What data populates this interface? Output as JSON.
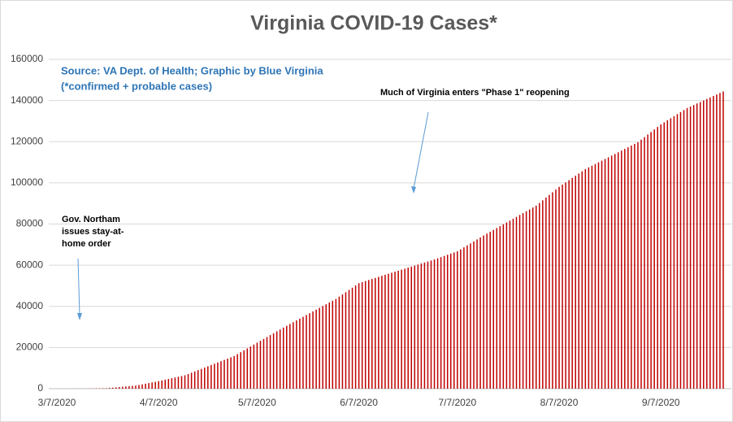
{
  "chart_data": {
    "type": "bar",
    "title": "Virginia COVID-19 Cases*",
    "source_note": [
      "Source: VA Dept. of Health; Graphic by Blue Virginia",
      "(*confirmed + probable cases)"
    ],
    "annotations": [
      [
        "Much of Virginia enters \"Phase 1\" reopening"
      ],
      [
        "Gov. Northam",
        "issues stay-at-",
        "home order"
      ]
    ],
    "color": "#c00000",
    "grid": true,
    "ylim": [
      0,
      160000
    ],
    "yticks": [
      0,
      20000,
      40000,
      60000,
      80000,
      100000,
      120000,
      140000,
      160000
    ],
    "xticks": [
      "3/7/2020",
      "4/7/2020",
      "5/7/2020",
      "6/7/2020",
      "7/7/2020",
      "8/7/2020",
      "9/7/2020"
    ],
    "x": [
      "3/7/2020",
      "3/8/2020",
      "3/9/2020",
      "3/10/2020",
      "3/11/2020",
      "3/12/2020",
      "3/13/2020",
      "3/14/2020",
      "3/15/2020",
      "3/16/2020",
      "3/17/2020",
      "3/18/2020",
      "3/19/2020",
      "3/20/2020",
      "3/21/2020",
      "3/22/2020",
      "3/23/2020",
      "3/24/2020",
      "3/25/2020",
      "3/26/2020",
      "3/27/2020",
      "3/28/2020",
      "3/29/2020",
      "3/30/2020",
      "3/31/2020",
      "4/1/2020",
      "4/2/2020",
      "4/3/2020",
      "4/4/2020",
      "4/5/2020",
      "4/6/2020",
      "4/7/2020",
      "4/8/2020",
      "4/9/2020",
      "4/10/2020",
      "4/11/2020",
      "4/12/2020",
      "4/13/2020",
      "4/14/2020",
      "4/15/2020",
      "4/16/2020",
      "4/17/2020",
      "4/18/2020",
      "4/19/2020",
      "4/20/2020",
      "4/21/2020",
      "4/22/2020",
      "4/23/2020",
      "4/24/2020",
      "4/25/2020",
      "4/26/2020",
      "4/27/2020",
      "4/28/2020",
      "4/29/2020",
      "4/30/2020",
      "5/1/2020",
      "5/2/2020",
      "5/3/2020",
      "5/4/2020",
      "5/5/2020",
      "5/6/2020",
      "5/7/2020",
      "5/8/2020",
      "5/9/2020",
      "5/10/2020",
      "5/11/2020",
      "5/12/2020",
      "5/13/2020",
      "5/14/2020",
      "5/15/2020",
      "5/16/2020",
      "5/17/2020",
      "5/18/2020",
      "5/19/2020",
      "5/20/2020",
      "5/21/2020",
      "5/22/2020",
      "5/23/2020",
      "5/24/2020",
      "5/25/2020",
      "5/26/2020",
      "5/27/2020",
      "5/28/2020",
      "5/29/2020",
      "5/30/2020",
      "5/31/2020",
      "6/1/2020",
      "6/2/2020",
      "6/3/2020",
      "6/4/2020",
      "6/5/2020",
      "6/6/2020",
      "6/7/2020",
      "6/8/2020",
      "6/9/2020",
      "6/10/2020",
      "6/11/2020",
      "6/12/2020",
      "6/13/2020",
      "6/14/2020",
      "6/15/2020",
      "6/16/2020",
      "6/17/2020",
      "6/18/2020",
      "6/19/2020",
      "6/20/2020",
      "6/21/2020",
      "6/22/2020",
      "6/23/2020",
      "6/24/2020",
      "6/25/2020",
      "6/26/2020",
      "6/27/2020",
      "6/28/2020",
      "6/29/2020",
      "6/30/2020",
      "7/1/2020",
      "7/2/2020",
      "7/3/2020",
      "7/4/2020",
      "7/5/2020",
      "7/6/2020",
      "7/7/2020",
      "7/8/2020",
      "7/9/2020",
      "7/10/2020",
      "7/11/2020",
      "7/12/2020",
      "7/13/2020",
      "7/14/2020",
      "7/15/2020",
      "7/16/2020",
      "7/17/2020",
      "7/18/2020",
      "7/19/2020",
      "7/20/2020",
      "7/21/2020",
      "7/22/2020",
      "7/23/2020",
      "7/24/2020",
      "7/25/2020",
      "7/26/2020",
      "7/27/2020",
      "7/28/2020",
      "7/29/2020",
      "7/30/2020",
      "7/31/2020",
      "8/1/2020",
      "8/2/2020",
      "8/3/2020",
      "8/4/2020",
      "8/5/2020",
      "8/6/2020",
      "8/7/2020",
      "8/8/2020",
      "8/9/2020",
      "8/10/2020",
      "8/11/2020",
      "8/12/2020",
      "8/13/2020",
      "8/14/2020",
      "8/15/2020",
      "8/16/2020",
      "8/17/2020",
      "8/18/2020",
      "8/19/2020",
      "8/20/2020",
      "8/21/2020",
      "8/22/2020",
      "8/23/2020",
      "8/24/2020",
      "8/25/2020",
      "8/26/2020",
      "8/27/2020",
      "8/28/2020",
      "8/29/2020",
      "8/30/2020",
      "8/31/2020",
      "9/1/2020",
      "9/2/2020",
      "9/3/2020",
      "9/4/2020",
      "9/5/2020",
      "9/6/2020",
      "9/7/2020",
      "9/8/2020",
      "9/9/2020",
      "9/10/2020",
      "9/11/2020",
      "9/12/2020",
      "9/13/2020",
      "9/14/2020",
      "9/15/2020",
      "9/16/2020",
      "9/17/2020",
      "9/18/2020",
      "9/19/2020",
      "9/20/2020",
      "9/21/2020",
      "9/22/2020",
      "9/23/2020",
      "9/24/2020",
      "9/25/2020",
      "9/26/2020"
    ],
    "values": [
      2,
      7,
      13,
      18,
      24,
      29,
      34,
      40,
      45,
      70,
      95,
      120,
      144,
      169,
      194,
      219,
      360,
      500,
      641,
      781,
      922,
      1062,
      1203,
      1343,
      1484,
      1793,
      2101,
      2410,
      2719,
      3028,
      3336,
      3645,
      4002,
      4359,
      4716,
      5073,
      5430,
      5786,
      6143,
      6500,
      7123,
      7746,
      8369,
      8992,
      9615,
      10238,
      10862,
      11485,
      12108,
      12731,
      13354,
      13977,
      14600,
      15223,
      15846,
      16774,
      17702,
      18630,
      19558,
      20486,
      21414,
      22342,
      23260,
      24177,
      25095,
      26013,
      26930,
      27848,
      28765,
      29683,
      30553,
      31424,
      32294,
      33165,
      34035,
      34906,
      35776,
      36647,
      37517,
      38388,
      39258,
      40129,
      40999,
      41870,
      42740,
      43611,
      44702,
      45794,
      46885,
      47976,
      49068,
      50159,
      51251,
      51761,
      52271,
      52781,
      53291,
      53801,
      54311,
      54821,
      55331,
      55828,
      56325,
      56822,
      57320,
      57817,
      58314,
      58811,
      59308,
      59805,
      60302,
      60799,
      61296,
      61793,
      62290,
      62787,
      63352,
      63917,
      64481,
      65046,
      65611,
      66175,
      66740,
      67701,
      68663,
      69624,
      70586,
      71547,
      72508,
      73470,
      74431,
      75336,
      76240,
      77145,
      78050,
      78954,
      79859,
      80763,
      81668,
      82573,
      83477,
      84382,
      85286,
      86191,
      87096,
      88000,
      88904,
      90209,
      91514,
      92820,
      94125,
      95430,
      96736,
      98041,
      99122,
      100203,
      101284,
      102364,
      103445,
      104526,
      105606,
      106687,
      107503,
      108319,
      109136,
      109952,
      110768,
      111584,
      112400,
      113217,
      114033,
      114849,
      115665,
      116481,
      117298,
      118114,
      118930,
      119747,
      120984,
      122221,
      123458,
      124695,
      125933,
      127170,
      128407,
      129401,
      130395,
      131389,
      132383,
      133377,
      134371,
      135365,
      136359,
      137090,
      137821,
      138552,
      139283,
      140014,
      140745,
      141476,
      142207,
      142938,
      143669,
      144400
    ]
  }
}
